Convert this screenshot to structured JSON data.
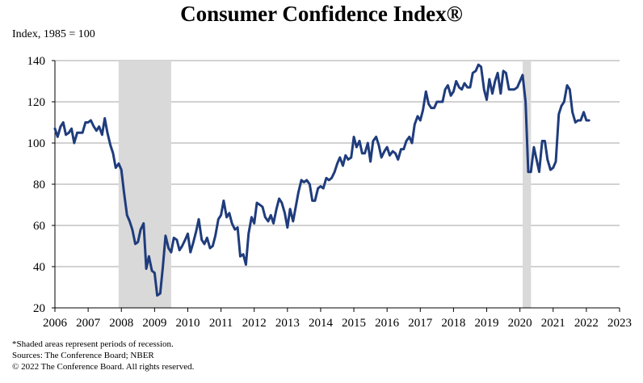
{
  "chart_data": {
    "type": "line",
    "title": "Consumer Confidence Index®",
    "ylabel": "Index, 1985 = 100",
    "xlabel": "",
    "xlim": [
      2006,
      2023
    ],
    "ylim": [
      20,
      140
    ],
    "yticks": [
      20,
      40,
      60,
      80,
      100,
      120,
      140
    ],
    "xticks": [
      2006,
      2007,
      2008,
      2009,
      2010,
      2011,
      2012,
      2013,
      2014,
      2015,
      2016,
      2017,
      2018,
      2019,
      2020,
      2021,
      2022,
      2023
    ],
    "grid": "horizontal",
    "recessions": [
      [
        2007.917,
        2009.5
      ],
      [
        2020.083,
        2020.333
      ]
    ],
    "line_color": "#1f3c7c",
    "shade_color": "#d9d9d9",
    "series": [
      {
        "points": [
          [
            2006.0,
            107
          ],
          [
            2006.08,
            103
          ],
          [
            2006.17,
            108
          ],
          [
            2006.25,
            110
          ],
          [
            2006.33,
            104
          ],
          [
            2006.42,
            105
          ],
          [
            2006.5,
            107
          ],
          [
            2006.58,
            100
          ],
          [
            2006.67,
            105
          ],
          [
            2006.75,
            105
          ],
          [
            2006.83,
            105
          ],
          [
            2006.92,
            110
          ],
          [
            2007.0,
            110
          ],
          [
            2007.08,
            111
          ],
          [
            2007.17,
            108
          ],
          [
            2007.25,
            106
          ],
          [
            2007.33,
            108
          ],
          [
            2007.42,
            104
          ],
          [
            2007.5,
            112
          ],
          [
            2007.58,
            105
          ],
          [
            2007.67,
            99
          ],
          [
            2007.75,
            95
          ],
          [
            2007.83,
            88
          ],
          [
            2007.92,
            90
          ],
          [
            2008.0,
            87
          ],
          [
            2008.08,
            76
          ],
          [
            2008.17,
            65
          ],
          [
            2008.25,
            62
          ],
          [
            2008.33,
            58
          ],
          [
            2008.42,
            51
          ],
          [
            2008.5,
            52
          ],
          [
            2008.58,
            58
          ],
          [
            2008.67,
            61
          ],
          [
            2008.75,
            39
          ],
          [
            2008.83,
            45
          ],
          [
            2008.92,
            38
          ],
          [
            2009.0,
            37
          ],
          [
            2009.08,
            26
          ],
          [
            2009.17,
            27
          ],
          [
            2009.25,
            40
          ],
          [
            2009.33,
            55
          ],
          [
            2009.42,
            49
          ],
          [
            2009.5,
            47
          ],
          [
            2009.58,
            54
          ],
          [
            2009.67,
            53
          ],
          [
            2009.75,
            48
          ],
          [
            2009.83,
            50
          ],
          [
            2009.92,
            53
          ],
          [
            2010.0,
            56
          ],
          [
            2010.08,
            47
          ],
          [
            2010.17,
            52
          ],
          [
            2010.25,
            57
          ],
          [
            2010.33,
            63
          ],
          [
            2010.42,
            53
          ],
          [
            2010.5,
            51
          ],
          [
            2010.58,
            54
          ],
          [
            2010.67,
            49
          ],
          [
            2010.75,
            50
          ],
          [
            2010.83,
            55
          ],
          [
            2010.92,
            63
          ],
          [
            2011.0,
            65
          ],
          [
            2011.08,
            72
          ],
          [
            2011.17,
            64
          ],
          [
            2011.25,
            66
          ],
          [
            2011.33,
            61
          ],
          [
            2011.42,
            58
          ],
          [
            2011.5,
            59
          ],
          [
            2011.58,
            45
          ],
          [
            2011.67,
            46
          ],
          [
            2011.75,
            41
          ],
          [
            2011.83,
            56
          ],
          [
            2011.92,
            64
          ],
          [
            2012.0,
            61
          ],
          [
            2012.08,
            71
          ],
          [
            2012.17,
            70
          ],
          [
            2012.25,
            69
          ],
          [
            2012.33,
            64
          ],
          [
            2012.42,
            62
          ],
          [
            2012.5,
            65
          ],
          [
            2012.58,
            61
          ],
          [
            2012.67,
            68
          ],
          [
            2012.75,
            73
          ],
          [
            2012.83,
            71
          ],
          [
            2012.92,
            66
          ],
          [
            2013.0,
            59
          ],
          [
            2013.08,
            68
          ],
          [
            2013.17,
            62
          ],
          [
            2013.25,
            69
          ],
          [
            2013.33,
            76
          ],
          [
            2013.42,
            82
          ],
          [
            2013.5,
            81
          ],
          [
            2013.58,
            82
          ],
          [
            2013.67,
            80
          ],
          [
            2013.75,
            72
          ],
          [
            2013.83,
            72
          ],
          [
            2013.92,
            78
          ],
          [
            2014.0,
            79
          ],
          [
            2014.08,
            78
          ],
          [
            2014.17,
            83
          ],
          [
            2014.25,
            82
          ],
          [
            2014.33,
            83
          ],
          [
            2014.42,
            86
          ],
          [
            2014.5,
            90
          ],
          [
            2014.58,
            93
          ],
          [
            2014.67,
            89
          ],
          [
            2014.75,
            94
          ],
          [
            2014.83,
            92
          ],
          [
            2014.92,
            93
          ],
          [
            2015.0,
            103
          ],
          [
            2015.08,
            98
          ],
          [
            2015.17,
            101
          ],
          [
            2015.25,
            95
          ],
          [
            2015.33,
            95
          ],
          [
            2015.42,
            100
          ],
          [
            2015.5,
            91
          ],
          [
            2015.58,
            101
          ],
          [
            2015.67,
            103
          ],
          [
            2015.75,
            99
          ],
          [
            2015.83,
            93
          ],
          [
            2015.92,
            96
          ],
          [
            2016.0,
            98
          ],
          [
            2016.08,
            94
          ],
          [
            2016.17,
            96
          ],
          [
            2016.25,
            95
          ],
          [
            2016.33,
            92
          ],
          [
            2016.42,
            97
          ],
          [
            2016.5,
            97
          ],
          [
            2016.58,
            101
          ],
          [
            2016.67,
            103
          ],
          [
            2016.75,
            100
          ],
          [
            2016.83,
            109
          ],
          [
            2016.92,
            113
          ],
          [
            2017.0,
            111
          ],
          [
            2017.08,
            116
          ],
          [
            2017.17,
            125
          ],
          [
            2017.25,
            119
          ],
          [
            2017.33,
            117
          ],
          [
            2017.42,
            117
          ],
          [
            2017.5,
            120
          ],
          [
            2017.58,
            120
          ],
          [
            2017.67,
            120
          ],
          [
            2017.75,
            126
          ],
          [
            2017.83,
            128
          ],
          [
            2017.92,
            123
          ],
          [
            2018.0,
            125
          ],
          [
            2018.08,
            130
          ],
          [
            2018.17,
            127
          ],
          [
            2018.25,
            126
          ],
          [
            2018.33,
            129
          ],
          [
            2018.42,
            127
          ],
          [
            2018.5,
            127
          ],
          [
            2018.58,
            134
          ],
          [
            2018.67,
            135
          ],
          [
            2018.75,
            138
          ],
          [
            2018.83,
            137
          ],
          [
            2018.92,
            126
          ],
          [
            2019.0,
            121
          ],
          [
            2019.08,
            131
          ],
          [
            2019.17,
            124
          ],
          [
            2019.25,
            130
          ],
          [
            2019.33,
            134
          ],
          [
            2019.42,
            124
          ],
          [
            2019.5,
            135
          ],
          [
            2019.58,
            134
          ],
          [
            2019.67,
            126
          ],
          [
            2019.75,
            126
          ],
          [
            2019.83,
            126
          ],
          [
            2019.92,
            127
          ],
          [
            2020.0,
            130
          ],
          [
            2020.08,
            133
          ],
          [
            2020.17,
            120
          ],
          [
            2020.25,
            86
          ],
          [
            2020.33,
            86
          ],
          [
            2020.42,
            98
          ],
          [
            2020.5,
            92
          ],
          [
            2020.58,
            86
          ],
          [
            2020.67,
            101
          ],
          [
            2020.75,
            101
          ],
          [
            2020.83,
            92
          ],
          [
            2020.92,
            87
          ],
          [
            2021.0,
            88
          ],
          [
            2021.08,
            91
          ],
          [
            2021.17,
            114
          ],
          [
            2021.25,
            118
          ],
          [
            2021.33,
            120
          ],
          [
            2021.42,
            128
          ],
          [
            2021.5,
            126
          ],
          [
            2021.58,
            115
          ],
          [
            2021.67,
            110
          ],
          [
            2021.75,
            111
          ],
          [
            2021.83,
            111
          ],
          [
            2021.92,
            115
          ],
          [
            2022.0,
            111
          ],
          [
            2022.08,
            111
          ]
        ]
      }
    ]
  },
  "footnotes": [
    "*Shaded areas represent periods of recession.",
    "Sources: The Conference Board; NBER",
    "© 2022 The Conference Board. All rights reserved."
  ]
}
